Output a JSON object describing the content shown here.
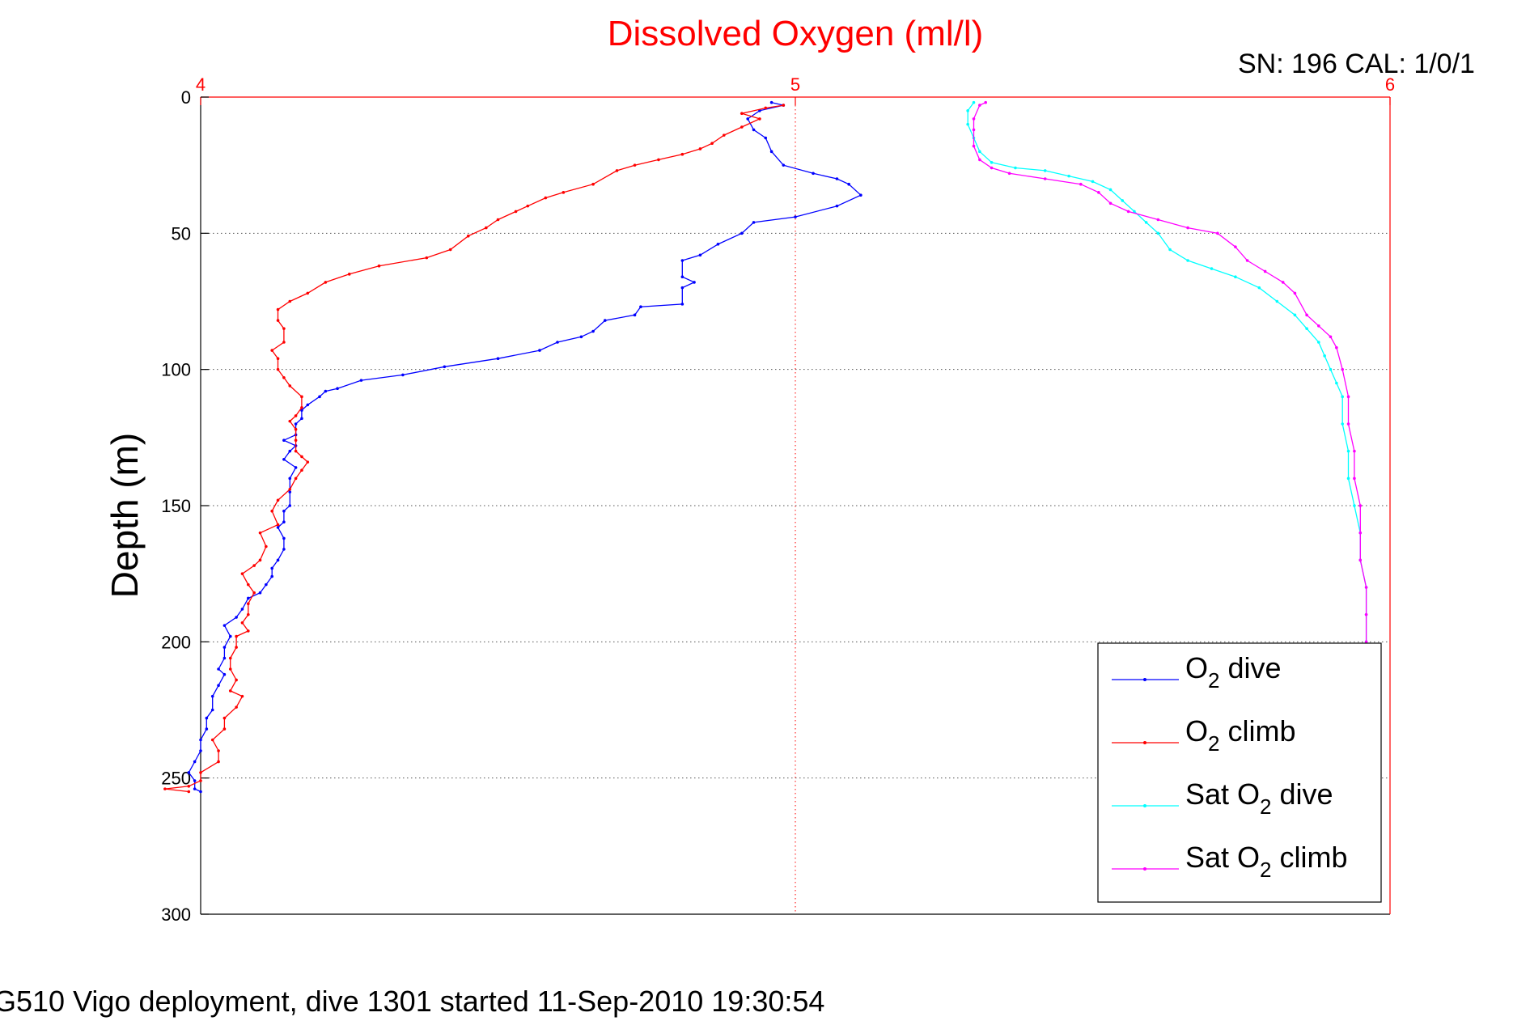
{
  "chart_data": {
    "type": "line",
    "title": "Dissolved Oxygen (ml/l)",
    "title_color": "#ff0000",
    "serial_label": "SN: 196  CAL: 1/0/1",
    "footer": "G510 Vigo deployment, dive 1301 started 11-Sep-2010 19:30:54",
    "ylabel": "Depth (m)",
    "xlabel": "",
    "xlim": [
      4,
      6
    ],
    "ylim": [
      300,
      0
    ],
    "y_inverted": true,
    "x_ticks": [
      "4",
      "5",
      "6"
    ],
    "y_ticks": [
      "0",
      "50",
      "100",
      "150",
      "200",
      "250",
      "300"
    ],
    "x_axis_position": "top",
    "x_axis_color": "#ff0000",
    "grid": true,
    "legend_position": "bottom-right",
    "series": [
      {
        "name": "O2 dive",
        "legend": {
          "prefix": "O",
          "sub": "2",
          "suffix": " dive"
        },
        "color": "#0000ff",
        "points": [
          [
            4.96,
            2
          ],
          [
            4.98,
            3
          ],
          [
            4.94,
            5
          ],
          [
            4.92,
            8
          ],
          [
            4.93,
            12
          ],
          [
            4.95,
            15
          ],
          [
            4.96,
            20
          ],
          [
            4.98,
            25
          ],
          [
            5.03,
            28
          ],
          [
            5.07,
            30
          ],
          [
            5.09,
            32
          ],
          [
            5.11,
            36
          ],
          [
            5.07,
            40
          ],
          [
            5.0,
            44
          ],
          [
            4.93,
            46
          ],
          [
            4.91,
            50
          ],
          [
            4.87,
            54
          ],
          [
            4.84,
            58
          ],
          [
            4.81,
            60
          ],
          [
            4.81,
            66
          ],
          [
            4.83,
            68
          ],
          [
            4.81,
            70
          ],
          [
            4.81,
            76
          ],
          [
            4.74,
            77
          ],
          [
            4.73,
            80
          ],
          [
            4.68,
            82
          ],
          [
            4.66,
            86
          ],
          [
            4.64,
            88
          ],
          [
            4.6,
            90
          ],
          [
            4.57,
            93
          ],
          [
            4.5,
            96
          ],
          [
            4.41,
            99
          ],
          [
            4.34,
            102
          ],
          [
            4.27,
            104
          ],
          [
            4.23,
            107
          ],
          [
            4.21,
            108
          ],
          [
            4.2,
            110
          ],
          [
            4.18,
            113
          ],
          [
            4.17,
            115
          ],
          [
            4.17,
            118
          ],
          [
            4.16,
            120
          ],
          [
            4.16,
            124
          ],
          [
            4.14,
            126
          ],
          [
            4.16,
            128
          ],
          [
            4.15,
            130
          ],
          [
            4.14,
            133
          ],
          [
            4.16,
            136
          ],
          [
            4.15,
            140
          ],
          [
            4.15,
            145
          ],
          [
            4.15,
            150
          ],
          [
            4.14,
            152
          ],
          [
            4.14,
            156
          ],
          [
            4.13,
            158
          ],
          [
            4.14,
            162
          ],
          [
            4.14,
            166
          ],
          [
            4.13,
            170
          ],
          [
            4.12,
            173
          ],
          [
            4.12,
            176
          ],
          [
            4.11,
            179
          ],
          [
            4.1,
            182
          ],
          [
            4.08,
            184
          ],
          [
            4.07,
            188
          ],
          [
            4.06,
            191
          ],
          [
            4.04,
            194
          ],
          [
            4.05,
            198
          ],
          [
            4.04,
            202
          ],
          [
            4.04,
            206
          ],
          [
            4.03,
            210
          ],
          [
            4.04,
            212
          ],
          [
            4.03,
            216
          ],
          [
            4.02,
            220
          ],
          [
            4.02,
            225
          ],
          [
            4.01,
            228
          ],
          [
            4.01,
            232
          ],
          [
            4.0,
            236
          ],
          [
            4.0,
            240
          ],
          [
            3.99,
            244
          ],
          [
            3.98,
            248
          ],
          [
            3.99,
            251
          ],
          [
            3.99,
            254
          ],
          [
            4.0,
            255
          ]
        ]
      },
      {
        "name": "O2 climb",
        "legend": {
          "prefix": "O",
          "sub": "2",
          "suffix": " climb"
        },
        "color": "#ff0000",
        "points": [
          [
            3.98,
            255
          ],
          [
            3.94,
            254
          ],
          [
            3.98,
            253
          ],
          [
            4.0,
            251
          ],
          [
            4.0,
            248
          ],
          [
            4.03,
            244
          ],
          [
            4.03,
            240
          ],
          [
            4.02,
            236
          ],
          [
            4.04,
            232
          ],
          [
            4.04,
            228
          ],
          [
            4.06,
            224
          ],
          [
            4.07,
            220
          ],
          [
            4.05,
            218
          ],
          [
            4.06,
            214
          ],
          [
            4.05,
            210
          ],
          [
            4.05,
            206
          ],
          [
            4.06,
            202
          ],
          [
            4.06,
            198
          ],
          [
            4.08,
            196
          ],
          [
            4.07,
            193
          ],
          [
            4.08,
            190
          ],
          [
            4.08,
            186
          ],
          [
            4.09,
            182
          ],
          [
            4.08,
            179
          ],
          [
            4.07,
            175
          ],
          [
            4.09,
            172
          ],
          [
            4.1,
            170
          ],
          [
            4.11,
            165
          ],
          [
            4.1,
            160
          ],
          [
            4.13,
            157
          ],
          [
            4.12,
            152
          ],
          [
            4.13,
            148
          ],
          [
            4.15,
            144
          ],
          [
            4.16,
            140
          ],
          [
            4.17,
            137
          ],
          [
            4.18,
            134
          ],
          [
            4.17,
            132
          ],
          [
            4.16,
            130
          ],
          [
            4.16,
            126
          ],
          [
            4.16,
            122
          ],
          [
            4.15,
            119
          ],
          [
            4.16,
            117
          ],
          [
            4.17,
            114
          ],
          [
            4.17,
            110
          ],
          [
            4.15,
            106
          ],
          [
            4.14,
            103
          ],
          [
            4.13,
            100
          ],
          [
            4.13,
            96
          ],
          [
            4.12,
            93
          ],
          [
            4.14,
            90
          ],
          [
            4.14,
            85
          ],
          [
            4.13,
            82
          ],
          [
            4.13,
            78
          ],
          [
            4.15,
            75
          ],
          [
            4.18,
            72
          ],
          [
            4.21,
            68
          ],
          [
            4.25,
            65
          ],
          [
            4.3,
            62
          ],
          [
            4.38,
            59
          ],
          [
            4.42,
            56
          ],
          [
            4.45,
            51
          ],
          [
            4.48,
            48
          ],
          [
            4.5,
            45
          ],
          [
            4.53,
            42
          ],
          [
            4.55,
            40
          ],
          [
            4.58,
            37
          ],
          [
            4.61,
            35
          ],
          [
            4.66,
            32
          ],
          [
            4.7,
            27
          ],
          [
            4.73,
            25
          ],
          [
            4.77,
            23
          ],
          [
            4.81,
            21
          ],
          [
            4.84,
            19
          ],
          [
            4.86,
            17
          ],
          [
            4.88,
            14
          ],
          [
            4.91,
            11
          ],
          [
            4.94,
            8
          ],
          [
            4.91,
            6
          ],
          [
            4.95,
            4
          ],
          [
            4.98,
            3
          ]
        ]
      },
      {
        "name": "Sat O2 dive",
        "legend": {
          "prefix": "Sat O",
          "sub": "2",
          "suffix": " dive"
        },
        "color": "#00ffff",
        "points": [
          [
            5.3,
            2
          ],
          [
            5.29,
            5
          ],
          [
            5.29,
            10
          ],
          [
            5.3,
            15
          ],
          [
            5.31,
            20
          ],
          [
            5.33,
            24
          ],
          [
            5.37,
            26
          ],
          [
            5.42,
            27
          ],
          [
            5.46,
            29
          ],
          [
            5.5,
            31
          ],
          [
            5.53,
            34
          ],
          [
            5.55,
            38
          ],
          [
            5.57,
            42
          ],
          [
            5.59,
            46
          ],
          [
            5.61,
            50
          ],
          [
            5.63,
            56
          ],
          [
            5.66,
            60
          ],
          [
            5.7,
            63
          ],
          [
            5.74,
            66
          ],
          [
            5.78,
            70
          ],
          [
            5.81,
            75
          ],
          [
            5.84,
            80
          ],
          [
            5.86,
            85
          ],
          [
            5.88,
            90
          ],
          [
            5.89,
            95
          ],
          [
            5.9,
            100
          ],
          [
            5.91,
            105
          ],
          [
            5.92,
            110
          ],
          [
            5.92,
            120
          ],
          [
            5.93,
            130
          ],
          [
            5.93,
            140
          ],
          [
            5.94,
            150
          ],
          [
            5.95,
            160
          ],
          [
            5.95,
            170
          ],
          [
            5.96,
            180
          ],
          [
            5.96,
            190
          ],
          [
            5.96,
            200
          ]
        ]
      },
      {
        "name": "Sat O2 climb",
        "legend": {
          "prefix": "Sat O",
          "sub": "2",
          "suffix": " climb"
        },
        "color": "#ff00ff",
        "points": [
          [
            5.96,
            200
          ],
          [
            5.96,
            190
          ],
          [
            5.96,
            180
          ],
          [
            5.95,
            170
          ],
          [
            5.95,
            160
          ],
          [
            5.95,
            150
          ],
          [
            5.94,
            140
          ],
          [
            5.94,
            130
          ],
          [
            5.93,
            120
          ],
          [
            5.93,
            110
          ],
          [
            5.92,
            100
          ],
          [
            5.91,
            92
          ],
          [
            5.9,
            88
          ],
          [
            5.88,
            84
          ],
          [
            5.86,
            80
          ],
          [
            5.84,
            72
          ],
          [
            5.82,
            68
          ],
          [
            5.79,
            64
          ],
          [
            5.76,
            60
          ],
          [
            5.74,
            55
          ],
          [
            5.71,
            50
          ],
          [
            5.66,
            48
          ],
          [
            5.61,
            45
          ],
          [
            5.56,
            42
          ],
          [
            5.53,
            39
          ],
          [
            5.51,
            35
          ],
          [
            5.48,
            32
          ],
          [
            5.42,
            30
          ],
          [
            5.36,
            28
          ],
          [
            5.33,
            26
          ],
          [
            5.31,
            23
          ],
          [
            5.3,
            18
          ],
          [
            5.3,
            12
          ],
          [
            5.3,
            8
          ],
          [
            5.31,
            3
          ],
          [
            5.32,
            2
          ]
        ]
      }
    ]
  }
}
